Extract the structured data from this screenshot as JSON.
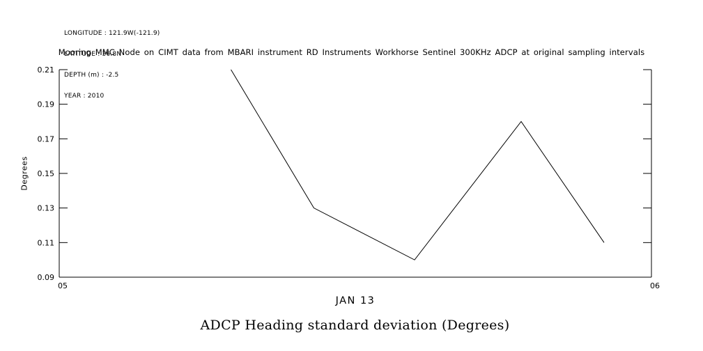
{
  "meta": {
    "longitude": "LONGITUDE : 121.9W(-121.9)",
    "latitude": "LATITUDE : 36.8N",
    "depth": "DEPTH (m) : -2.5",
    "year": "YEAR : 2010"
  },
  "header": {
    "title": "Mooring MMC Node on CIMT data from MBARI instrument RD Instruments Workhorse Sentinel 300KHz ADCP at original sampling intervals"
  },
  "chart_data": {
    "type": "line",
    "title": "ADCP Heading standard deviation (Degrees)",
    "xlabel": "JAN 13",
    "ylabel": "Degrees",
    "x": [
      5.29,
      5.43,
      5.6,
      5.78,
      5.92
    ],
    "values": [
      0.21,
      0.13,
      0.1,
      0.18,
      0.11
    ],
    "xlim": [
      5,
      6
    ],
    "ylim": [
      0.09,
      0.21
    ],
    "xticks": [
      5,
      6
    ],
    "xtick_labels": [
      "05",
      "06"
    ],
    "yticks": [
      0.09,
      0.11,
      0.13,
      0.15,
      0.17,
      0.19,
      0.21
    ],
    "ytick_labels": [
      "0.09",
      "0.11",
      "0.13",
      "0.15",
      "0.17",
      "0.19",
      "0.21"
    ],
    "grid": false,
    "legend": null,
    "line_color": "#000000",
    "background_color": "#ffffff"
  }
}
